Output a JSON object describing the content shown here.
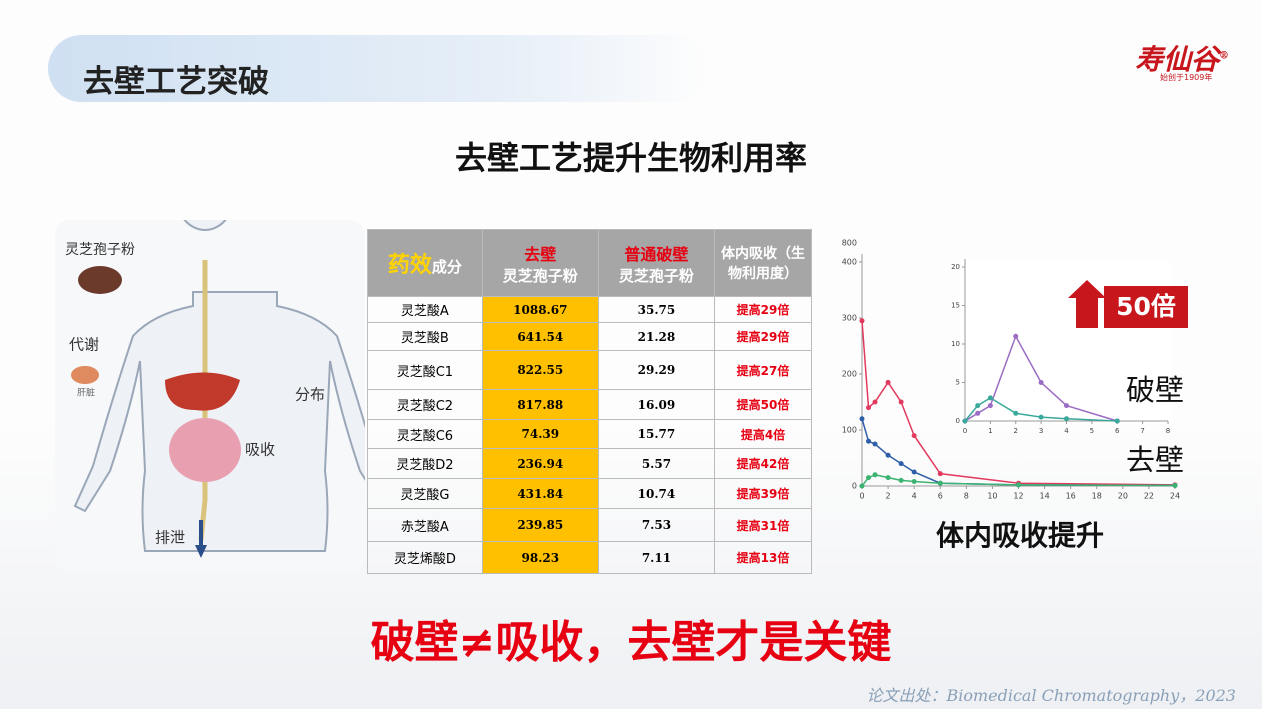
{
  "header": {
    "title": "去壁工艺突破",
    "logo": "寿仙谷",
    "logo_mark": "®",
    "logo_sub": "始创于1909年"
  },
  "subtitle": "去壁工艺提升生物利用率",
  "diagram": {
    "labels": [
      "灵芝孢子粉",
      "代谢",
      "肝脏",
      "分布",
      "吸收",
      "排泄"
    ]
  },
  "table": {
    "header": [
      {
        "highlight": "药效",
        "rest": "成分"
      },
      {
        "top": "去壁",
        "bottom": "灵芝孢子粉"
      },
      {
        "top": "普通破壁",
        "bottom": "灵芝孢子粉"
      },
      {
        "text": "体内吸收（生物利用度）"
      }
    ],
    "rows": [
      [
        "灵芝酸A",
        "1088.67",
        "35.75",
        "提高29倍"
      ],
      [
        "灵芝酸B",
        "641.54",
        "21.28",
        "提高29倍"
      ],
      [
        "灵芝酸C1",
        "822.55",
        "29.29",
        "提高27倍"
      ],
      [
        "灵芝酸C2",
        "817.88",
        "16.09",
        "提高50倍"
      ],
      [
        "灵芝酸C6",
        "74.39",
        "15.77",
        "提高4倍"
      ],
      [
        "灵芝酸D2",
        "236.94",
        "5.57",
        "提高42倍"
      ],
      [
        "灵芝酸G",
        "431.84",
        "10.74",
        "提高39倍"
      ],
      [
        "赤芝酸A",
        "239.85",
        "7.53",
        "提高31倍"
      ],
      [
        "灵芝烯酸D",
        "98.23",
        "7.11",
        "提高13倍"
      ]
    ]
  },
  "chart_data": {
    "type": "line",
    "x": [
      0,
      0.5,
      1,
      2,
      3,
      4,
      6,
      12,
      24
    ],
    "xlim": [
      0,
      24
    ],
    "xticks": [
      0,
      2,
      4,
      6,
      8,
      10,
      12,
      14,
      16,
      18,
      20,
      22,
      24
    ],
    "ylim": [
      0,
      400
    ],
    "yticks": [
      0,
      100,
      200,
      300,
      400
    ],
    "y_break_tick": 800,
    "series": [
      {
        "color": "#e23a5e",
        "values": [
          295,
          140,
          150,
          185,
          150,
          90,
          22,
          5,
          2
        ]
      },
      {
        "color": "#2f5fa8",
        "values": [
          120,
          80,
          75,
          55,
          40,
          25,
          5,
          2,
          1
        ]
      },
      {
        "color": "#3cb371",
        "values": [
          0,
          15,
          20,
          15,
          10,
          8,
          5,
          2,
          1
        ]
      }
    ],
    "inset": {
      "type": "line",
      "x": [
        0,
        0.5,
        1,
        2,
        3,
        4,
        6
      ],
      "xlim": [
        0,
        8
      ],
      "xticks": [
        0,
        1,
        2,
        3,
        4,
        5,
        6,
        7,
        8
      ],
      "ylim": [
        0,
        20
      ],
      "yticks": [
        0,
        5,
        10,
        15,
        20
      ],
      "series": [
        {
          "color": "#9b6cc4",
          "values": [
            0,
            1,
            2,
            11,
            5,
            2,
            0
          ]
        },
        {
          "color": "#3aa89a",
          "values": [
            0,
            2,
            3,
            1,
            0.5,
            0.3,
            0
          ]
        }
      ]
    },
    "annotations": [
      "破壁",
      "去壁"
    ]
  },
  "badge": "50倍",
  "chart_caption": "体内吸收提升",
  "slogan": "破壁≠吸收，去壁才是关键",
  "source": "论文出处：Biomedical Chromatography，2023"
}
